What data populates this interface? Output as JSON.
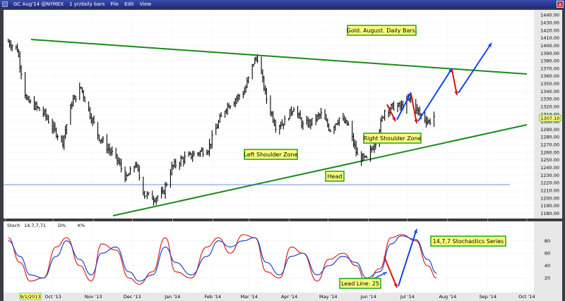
{
  "window": {
    "symbol_title": "GC Aug'14 @NYMEX",
    "interval": "1 yr/daily bars",
    "menu": [
      "File",
      "Edit",
      "View"
    ],
    "close_label": "x"
  },
  "price_panel": {
    "y_ticks": [
      1180,
      1190,
      1200,
      1210,
      1220,
      1230,
      1240,
      1250,
      1260,
      1270,
      1280,
      1290,
      1300,
      1310,
      1320,
      1330,
      1340,
      1350,
      1360,
      1370,
      1380,
      1390,
      1400,
      1410,
      1420,
      1430,
      1440
    ],
    "last_price_label": "1307.10",
    "annotations": [
      {
        "id": "title",
        "text": "Gold. August. Daily Bars."
      },
      {
        "id": "left-shoulder",
        "text": "Left Shoulder Zone"
      },
      {
        "id": "head",
        "text": "Head"
      },
      {
        "id": "right-shoulder",
        "text": "Right Shoulder Zone"
      }
    ]
  },
  "stoch_panel": {
    "legend": [
      "Stoch",
      "14,7,7,71",
      "D%",
      "K%"
    ],
    "y_ticks": [
      20,
      40,
      60,
      80
    ],
    "annotations": [
      {
        "id": "stoch-series",
        "text": "14,7,7 Stochastics Series"
      },
      {
        "id": "lead-line",
        "text": "Lead Line: 25"
      }
    ]
  },
  "x_axis": {
    "labels": [
      "9/1/2013",
      "Oct '13",
      "Nov '13",
      "Dec '13",
      "Jan '14",
      "Feb '14",
      "Mar '14",
      "Apr '14",
      "May '14",
      "Jun '14",
      "Jul '14",
      "Aug '14",
      "Sep '14",
      "Oct '14"
    ]
  },
  "colors": {
    "price_bars": "#000000",
    "trendlines": "#1a8a1a",
    "support_line": "#4466dd",
    "stoch_k": "#dd2222",
    "stoch_d": "#2244cc",
    "up_arrow": "#1144ee",
    "down_arrow": "#dd1111",
    "annotation_fill": "#fcfc7c"
  },
  "chart_data": [
    {
      "type": "line",
      "title": "Gold. August. Daily Bars.",
      "series": [
        {
          "name": "GC Aug'14 @NYMEX",
          "x": [
            "9/3/2013",
            "9/10/2013",
            "9/17/2013",
            "9/24/2013",
            "10/1/2013",
            "10/8/2013",
            "10/15/2013",
            "10/22/2013",
            "10/29/2013",
            "11/5/2013",
            "11/12/2013",
            "11/19/2013",
            "11/26/2013",
            "12/3/2013",
            "12/10/2013",
            "12/17/2013",
            "12/24/2013",
            "12/31/2013",
            "1/7/2014",
            "1/14/2014",
            "1/21/2014",
            "1/28/2014",
            "2/4/2014",
            "2/11/2014",
            "2/18/2014",
            "2/25/2014",
            "3/4/2014",
            "3/11/2014",
            "3/14/2014",
            "3/21/2014",
            "3/28/2014",
            "4/4/2014",
            "4/11/2014",
            "4/18/2014",
            "4/25/2014",
            "5/2/2014",
            "5/9/2014",
            "5/16/2014",
            "5/23/2014",
            "5/30/2014",
            "6/6/2014",
            "6/13/2014",
            "6/20/2014",
            "6/27/2014",
            "7/3/2014",
            "7/10/2014",
            "7/17/2014",
            "7/24/2014",
            "7/28/2014"
          ],
          "values": [
            1405,
            1395,
            1328,
            1320,
            1310,
            1290,
            1275,
            1325,
            1345,
            1310,
            1280,
            1265,
            1250,
            1225,
            1245,
            1205,
            1200,
            1205,
            1240,
            1250,
            1255,
            1260,
            1265,
            1295,
            1320,
            1330,
            1340,
            1378,
            1385,
            1330,
            1295,
            1300,
            1320,
            1295,
            1300,
            1310,
            1290,
            1305,
            1295,
            1255,
            1250,
            1275,
            1315,
            1320,
            1320,
            1330,
            1310,
            1300,
            1307.1
          ]
        }
      ],
      "ylim": [
        1175,
        1445
      ]
    },
    {
      "type": "line",
      "title": "14,7,7 Stochastics Series",
      "series": [
        {
          "name": "K%",
          "x": [
            "9/3/2013",
            "9/12/2013",
            "9/20/2013",
            "9/30/2013",
            "10/10/2013",
            "10/18/2013",
            "10/28/2013",
            "11/6/2013",
            "11/14/2013",
            "11/25/2013",
            "12/5/2013",
            "12/13/2013",
            "12/23/2013",
            "1/2/2014",
            "1/10/2014",
            "1/22/2014",
            "2/3/2014",
            "2/12/2014",
            "2/21/2014",
            "3/3/2014",
            "3/12/2014",
            "3/21/2014",
            "3/31/2014",
            "4/9/2014",
            "4/18/2014",
            "4/29/2014",
            "5/8/2014",
            "5/19/2014",
            "5/29/2014",
            "6/6/2014",
            "6/16/2014",
            "6/25/2014",
            "7/3/2014",
            "7/14/2014",
            "7/23/2014",
            "7/30/2014"
          ],
          "values": [
            85,
            45,
            15,
            20,
            70,
            85,
            40,
            15,
            75,
            65,
            20,
            10,
            30,
            85,
            30,
            20,
            70,
            85,
            60,
            90,
            85,
            30,
            20,
            70,
            60,
            15,
            50,
            60,
            40,
            10,
            35,
            85,
            90,
            80,
            40,
            20
          ]
        },
        {
          "name": "D%",
          "x": [
            "9/3/2013",
            "9/12/2013",
            "9/20/2013",
            "9/30/2013",
            "10/10/2013",
            "10/18/2013",
            "10/28/2013",
            "11/6/2013",
            "11/14/2013",
            "11/25/2013",
            "12/5/2013",
            "12/13/2013",
            "12/23/2013",
            "1/2/2014",
            "1/10/2014",
            "1/22/2014",
            "2/3/2014",
            "2/12/2014",
            "2/21/2014",
            "3/3/2014",
            "3/12/2014",
            "3/21/2014",
            "3/31/2014",
            "4/9/2014",
            "4/18/2014",
            "4/29/2014",
            "5/8/2014",
            "5/19/2014",
            "5/29/2014",
            "6/6/2014",
            "6/16/2014",
            "6/25/2014",
            "7/3/2014",
            "7/14/2014",
            "7/23/2014",
            "7/30/2014"
          ],
          "values": [
            80,
            55,
            25,
            20,
            55,
            80,
            50,
            25,
            60,
            70,
            30,
            15,
            25,
            70,
            45,
            25,
            55,
            80,
            70,
            80,
            85,
            45,
            25,
            55,
            60,
            25,
            40,
            55,
            45,
            20,
            30,
            75,
            88,
            82,
            50,
            28
          ]
        }
      ],
      "ylim": [
        0,
        100
      ]
    }
  ]
}
